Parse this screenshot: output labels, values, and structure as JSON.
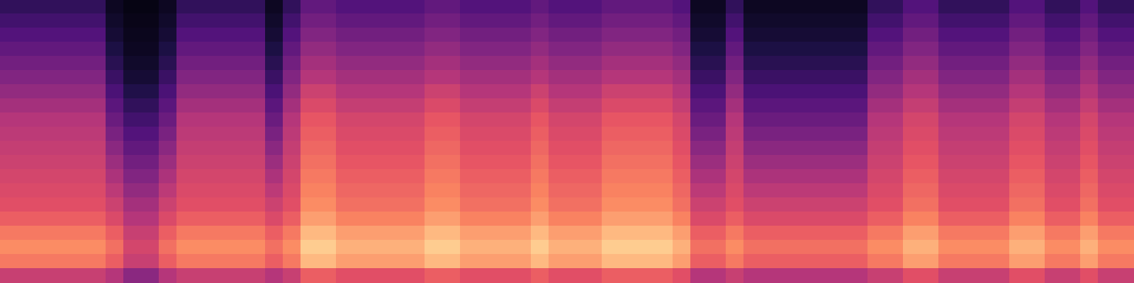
{
  "chart_data": {
    "type": "heatmap",
    "grid": false,
    "tick_labels": false,
    "color_range": [
      0,
      100
    ],
    "cells": [
      [
        18,
        18,
        18,
        18,
        18,
        18,
        6,
        3,
        3,
        6,
        18,
        18,
        18,
        18,
        18,
        6,
        18,
        30,
        30,
        26,
        26,
        26,
        26,
        26,
        30,
        30,
        26,
        26,
        26,
        26,
        30,
        26,
        26,
        26,
        30,
        30,
        30,
        30,
        26,
        6,
        6,
        18,
        6,
        6,
        6,
        6,
        6,
        6,
        6,
        18,
        18,
        26,
        26,
        18,
        18,
        18,
        18,
        26,
        26,
        18,
        18,
        26,
        18,
        18
      ],
      [
        22,
        22,
        22,
        22,
        22,
        22,
        8,
        4,
        4,
        8,
        22,
        22,
        22,
        22,
        22,
        8,
        22,
        34,
        34,
        30,
        30,
        30,
        30,
        30,
        34,
        34,
        30,
        30,
        30,
        30,
        34,
        30,
        30,
        30,
        34,
        34,
        34,
        34,
        30,
        8,
        8,
        22,
        8,
        8,
        8,
        8,
        8,
        8,
        8,
        22,
        22,
        30,
        30,
        22,
        22,
        22,
        22,
        30,
        30,
        22,
        22,
        30,
        22,
        22
      ],
      [
        26,
        26,
        26,
        26,
        26,
        26,
        10,
        5,
        5,
        10,
        26,
        26,
        26,
        26,
        26,
        10,
        26,
        38,
        38,
        34,
        34,
        34,
        34,
        34,
        38,
        38,
        34,
        34,
        34,
        34,
        38,
        34,
        34,
        34,
        38,
        38,
        38,
        38,
        34,
        10,
        10,
        26,
        10,
        10,
        10,
        10,
        10,
        10,
        10,
        26,
        26,
        34,
        34,
        26,
        26,
        26,
        26,
        34,
        34,
        26,
        26,
        34,
        26,
        26
      ],
      [
        30,
        30,
        30,
        30,
        30,
        30,
        13,
        6,
        6,
        13,
        30,
        30,
        30,
        30,
        30,
        13,
        30,
        42,
        42,
        38,
        38,
        38,
        38,
        38,
        42,
        42,
        38,
        38,
        38,
        38,
        42,
        38,
        38,
        38,
        42,
        42,
        42,
        42,
        38,
        13,
        13,
        30,
        13,
        13,
        13,
        13,
        13,
        13,
        13,
        30,
        30,
        38,
        38,
        30,
        30,
        30,
        30,
        38,
        38,
        30,
        30,
        38,
        30,
        30
      ],
      [
        34,
        34,
        34,
        34,
        34,
        34,
        16,
        8,
        8,
        16,
        34,
        34,
        34,
        34,
        34,
        16,
        34,
        46,
        46,
        42,
        42,
        42,
        42,
        42,
        46,
        46,
        42,
        42,
        42,
        42,
        46,
        42,
        42,
        42,
        46,
        46,
        46,
        46,
        42,
        16,
        16,
        34,
        16,
        16,
        16,
        16,
        16,
        16,
        16,
        34,
        34,
        42,
        42,
        34,
        34,
        34,
        34,
        42,
        42,
        34,
        34,
        42,
        34,
        34
      ],
      [
        38,
        38,
        38,
        38,
        38,
        38,
        20,
        10,
        10,
        20,
        38,
        38,
        38,
        38,
        38,
        20,
        38,
        50,
        50,
        46,
        46,
        46,
        46,
        46,
        50,
        50,
        46,
        46,
        46,
        46,
        50,
        46,
        46,
        46,
        50,
        50,
        50,
        50,
        46,
        20,
        20,
        38,
        20,
        20,
        20,
        20,
        20,
        20,
        20,
        38,
        38,
        46,
        46,
        38,
        38,
        38,
        38,
        46,
        46,
        38,
        38,
        46,
        38,
        38
      ],
      [
        42,
        42,
        42,
        42,
        42,
        42,
        24,
        14,
        14,
        24,
        42,
        42,
        42,
        42,
        42,
        24,
        42,
        56,
        56,
        50,
        50,
        50,
        50,
        50,
        56,
        56,
        50,
        50,
        50,
        50,
        56,
        50,
        50,
        50,
        56,
        56,
        56,
        56,
        50,
        24,
        24,
        42,
        24,
        24,
        24,
        24,
        24,
        24,
        24,
        42,
        42,
        50,
        50,
        42,
        42,
        42,
        42,
        50,
        50,
        42,
        42,
        50,
        42,
        42
      ],
      [
        46,
        46,
        46,
        46,
        46,
        46,
        28,
        18,
        18,
        28,
        46,
        46,
        46,
        46,
        46,
        28,
        46,
        60,
        60,
        54,
        54,
        54,
        54,
        54,
        60,
        60,
        54,
        54,
        54,
        54,
        60,
        54,
        54,
        54,
        60,
        60,
        60,
        60,
        54,
        28,
        28,
        46,
        28,
        28,
        28,
        28,
        28,
        28,
        28,
        46,
        46,
        54,
        54,
        46,
        46,
        46,
        46,
        54,
        54,
        46,
        46,
        54,
        46,
        46
      ],
      [
        50,
        50,
        50,
        50,
        50,
        50,
        32,
        22,
        22,
        32,
        50,
        50,
        50,
        50,
        50,
        32,
        50,
        64,
        64,
        58,
        58,
        58,
        58,
        58,
        64,
        64,
        58,
        58,
        58,
        58,
        64,
        58,
        58,
        58,
        64,
        64,
        64,
        64,
        58,
        32,
        32,
        50,
        32,
        32,
        32,
        32,
        32,
        32,
        32,
        50,
        50,
        58,
        58,
        50,
        50,
        50,
        50,
        58,
        58,
        50,
        50,
        58,
        50,
        50
      ],
      [
        52,
        52,
        52,
        52,
        52,
        52,
        36,
        26,
        26,
        36,
        52,
        52,
        52,
        52,
        52,
        36,
        52,
        66,
        66,
        60,
        60,
        60,
        60,
        60,
        66,
        66,
        60,
        60,
        60,
        60,
        66,
        60,
        60,
        60,
        66,
        66,
        66,
        66,
        60,
        36,
        36,
        52,
        36,
        36,
        36,
        36,
        36,
        36,
        36,
        52,
        52,
        60,
        60,
        52,
        52,
        52,
        52,
        60,
        60,
        52,
        52,
        60,
        52,
        52
      ],
      [
        54,
        54,
        54,
        54,
        54,
        54,
        40,
        30,
        30,
        40,
        54,
        54,
        54,
        54,
        54,
        40,
        54,
        68,
        68,
        62,
        62,
        62,
        62,
        62,
        68,
        68,
        62,
        62,
        62,
        62,
        68,
        62,
        62,
        62,
        68,
        68,
        68,
        68,
        62,
        40,
        40,
        54,
        40,
        40,
        40,
        40,
        40,
        40,
        40,
        54,
        54,
        62,
        62,
        54,
        54,
        54,
        54,
        62,
        62,
        54,
        54,
        62,
        54,
        54
      ],
      [
        56,
        56,
        56,
        56,
        56,
        56,
        44,
        34,
        34,
        44,
        56,
        56,
        56,
        56,
        56,
        44,
        56,
        70,
        70,
        64,
        64,
        64,
        64,
        64,
        70,
        70,
        64,
        64,
        64,
        64,
        70,
        64,
        64,
        64,
        70,
        70,
        70,
        70,
        64,
        44,
        44,
        56,
        44,
        44,
        44,
        44,
        44,
        44,
        44,
        56,
        56,
        64,
        64,
        56,
        56,
        56,
        56,
        64,
        64,
        56,
        56,
        64,
        56,
        56
      ],
      [
        58,
        58,
        58,
        58,
        58,
        58,
        48,
        38,
        38,
        48,
        58,
        58,
        58,
        58,
        58,
        48,
        58,
        72,
        72,
        66,
        66,
        66,
        66,
        66,
        72,
        72,
        66,
        66,
        66,
        66,
        72,
        66,
        66,
        66,
        72,
        72,
        72,
        72,
        66,
        48,
        48,
        58,
        48,
        48,
        48,
        48,
        48,
        48,
        48,
        58,
        58,
        66,
        66,
        58,
        58,
        58,
        58,
        66,
        66,
        58,
        58,
        66,
        58,
        58
      ],
      [
        60,
        60,
        60,
        60,
        60,
        60,
        52,
        42,
        42,
        52,
        60,
        60,
        60,
        60,
        60,
        52,
        60,
        74,
        74,
        68,
        68,
        68,
        68,
        68,
        74,
        74,
        68,
        68,
        68,
        68,
        74,
        68,
        68,
        68,
        74,
        74,
        74,
        74,
        68,
        52,
        52,
        60,
        52,
        52,
        52,
        52,
        52,
        52,
        52,
        60,
        60,
        68,
        68,
        60,
        60,
        60,
        60,
        68,
        68,
        60,
        60,
        68,
        60,
        60
      ],
      [
        62,
        62,
        62,
        62,
        62,
        62,
        56,
        46,
        46,
        56,
        62,
        62,
        62,
        62,
        62,
        56,
        62,
        76,
        76,
        70,
        70,
        70,
        70,
        70,
        76,
        76,
        70,
        70,
        70,
        70,
        76,
        70,
        70,
        70,
        76,
        76,
        76,
        76,
        70,
        56,
        56,
        62,
        56,
        56,
        56,
        56,
        56,
        56,
        56,
        62,
        62,
        70,
        70,
        62,
        62,
        62,
        62,
        70,
        70,
        62,
        62,
        70,
        62,
        62
      ],
      [
        66,
        66,
        66,
        66,
        66,
        66,
        60,
        50,
        50,
        60,
        66,
        66,
        66,
        66,
        66,
        60,
        66,
        80,
        80,
        74,
        74,
        74,
        74,
        74,
        80,
        80,
        74,
        74,
        74,
        74,
        80,
        74,
        74,
        74,
        80,
        80,
        80,
        80,
        74,
        60,
        60,
        66,
        60,
        60,
        60,
        60,
        60,
        60,
        60,
        66,
        66,
        74,
        74,
        66,
        66,
        66,
        66,
        74,
        74,
        66,
        66,
        74,
        66,
        66
      ],
      [
        72,
        72,
        72,
        72,
        72,
        72,
        66,
        55,
        55,
        66,
        72,
        72,
        72,
        72,
        72,
        66,
        72,
        86,
        86,
        80,
        80,
        80,
        80,
        80,
        86,
        86,
        80,
        80,
        80,
        80,
        86,
        80,
        80,
        80,
        86,
        86,
        86,
        86,
        80,
        66,
        66,
        72,
        66,
        66,
        66,
        66,
        66,
        66,
        66,
        72,
        72,
        80,
        80,
        72,
        72,
        72,
        72,
        80,
        80,
        72,
        72,
        80,
        72,
        72
      ],
      [
        76,
        76,
        76,
        76,
        76,
        76,
        70,
        58,
        58,
        70,
        76,
        76,
        76,
        76,
        76,
        70,
        76,
        90,
        90,
        84,
        84,
        84,
        84,
        84,
        90,
        90,
        84,
        84,
        84,
        84,
        90,
        84,
        84,
        84,
        90,
        90,
        90,
        90,
        84,
        70,
        70,
        76,
        70,
        70,
        70,
        70,
        70,
        70,
        70,
        76,
        76,
        84,
        84,
        76,
        76,
        76,
        76,
        84,
        84,
        76,
        76,
        84,
        76,
        76
      ],
      [
        72,
        72,
        72,
        72,
        72,
        72,
        66,
        55,
        55,
        66,
        72,
        72,
        72,
        72,
        72,
        66,
        72,
        86,
        86,
        80,
        80,
        80,
        80,
        80,
        86,
        86,
        80,
        80,
        80,
        80,
        86,
        80,
        80,
        80,
        86,
        86,
        86,
        86,
        80,
        66,
        66,
        72,
        66,
        66,
        66,
        66,
        66,
        66,
        66,
        72,
        72,
        80,
        80,
        72,
        72,
        72,
        72,
        80,
        80,
        72,
        72,
        80,
        72,
        72
      ],
      [
        55,
        55,
        55,
        55,
        55,
        55,
        50,
        40,
        40,
        50,
        55,
        55,
        55,
        55,
        55,
        50,
        55,
        66,
        66,
        62,
        62,
        62,
        62,
        62,
        66,
        66,
        62,
        62,
        62,
        62,
        66,
        62,
        62,
        62,
        66,
        66,
        66,
        66,
        62,
        50,
        50,
        55,
        50,
        50,
        50,
        50,
        50,
        50,
        50,
        55,
        55,
        62,
        62,
        55,
        55,
        55,
        55,
        62,
        62,
        55,
        55,
        62,
        55,
        55
      ]
    ]
  }
}
